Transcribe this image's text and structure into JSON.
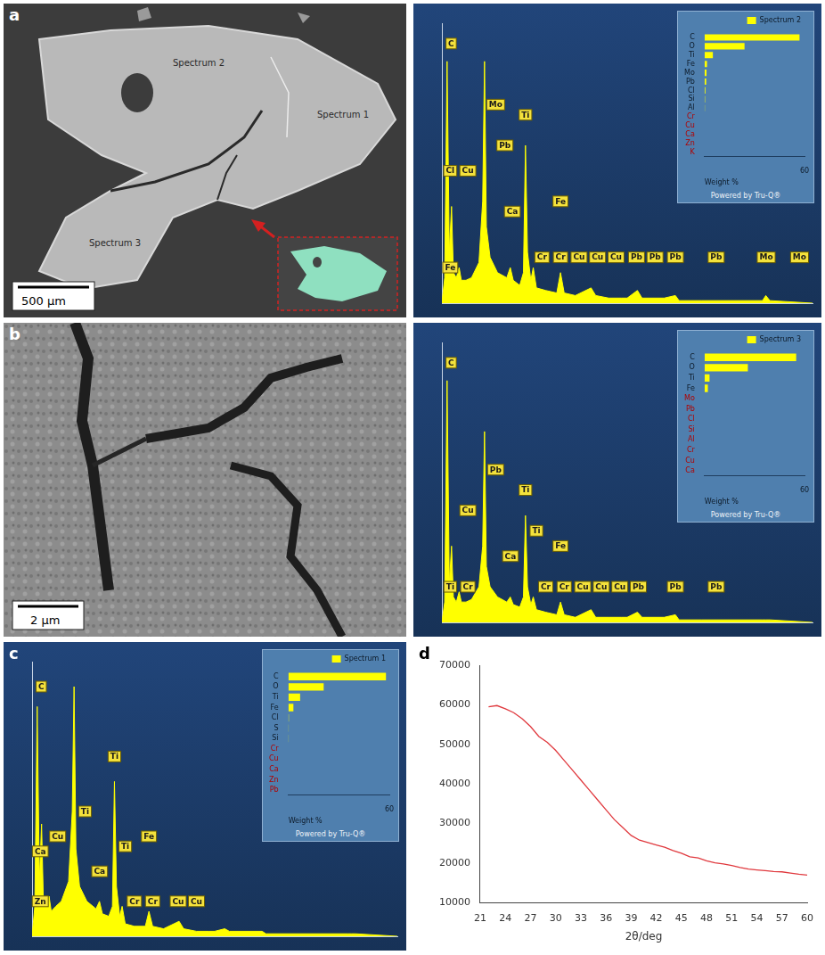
{
  "panels": [
    {
      "letter": "a",
      "labels": [
        "Spectrum 2",
        "Spectrum 1",
        "Spectrum 3"
      ],
      "scale_bar": "500 µm"
    },
    {
      "letter": "b",
      "scale_bar": "2 µm"
    },
    {
      "letter": "c"
    },
    {
      "letter": "d"
    }
  ],
  "chart_data": [
    {
      "type": "area",
      "color": "#ffff00",
      "xlim": [
        0,
        20
      ],
      "ylim": [
        0,
        110
      ],
      "grid": false,
      "tick_labels": false,
      "x": [
        0,
        0.15,
        0.28,
        0.4,
        0.52,
        0.62,
        0.78,
        0.93,
        1.05,
        1.3,
        1.6,
        2.0,
        2.2,
        2.3,
        2.4,
        2.6,
        3.0,
        3.5,
        3.69,
        3.85,
        4.2,
        4.4,
        4.51,
        4.62,
        4.8,
        4.93,
        5.1,
        5.6,
        6.2,
        6.4,
        6.6,
        7.2,
        8.05,
        8.3,
        9.0,
        9.7,
        10.0,
        10.55,
        10.8,
        12.0,
        12.6,
        12.8,
        14.0,
        17.3,
        17.48,
        17.7,
        20
      ],
      "values": [
        0,
        10,
        95,
        20,
        38,
        12,
        10,
        14,
        9,
        9,
        10,
        16,
        40,
        95,
        30,
        18,
        12,
        10,
        14,
        9,
        7,
        12,
        62,
        20,
        9,
        14,
        6,
        5,
        4,
        12,
        4,
        3,
        6,
        3,
        2,
        2,
        2,
        5,
        2,
        2,
        3,
        1,
        1,
        1,
        3,
        1,
        0
      ],
      "annotations": [
        {
          "text": "C",
          "x": 0.5,
          "y": 102
        },
        {
          "text": "Cl",
          "x": 0.45,
          "y": 52
        },
        {
          "text": "Fe",
          "x": 0.45,
          "y": 14
        },
        {
          "text": "Cu",
          "x": 1.4,
          "y": 52
        },
        {
          "text": "Mo",
          "x": 2.9,
          "y": 78
        },
        {
          "text": "Pb",
          "x": 3.4,
          "y": 62
        },
        {
          "text": "Ca",
          "x": 3.8,
          "y": 36
        },
        {
          "text": "Ti",
          "x": 4.51,
          "y": 74
        },
        {
          "text": "Fe",
          "x": 6.4,
          "y": 40
        },
        {
          "text": "Cr",
          "x": 5.4,
          "y": 18
        },
        {
          "text": "Cr",
          "x": 6.4,
          "y": 18
        },
        {
          "text": "Cu",
          "x": 7.4,
          "y": 18
        },
        {
          "text": "Cu",
          "x": 8.4,
          "y": 18
        },
        {
          "text": "Cu",
          "x": 9.4,
          "y": 18
        },
        {
          "text": "Pb",
          "x": 10.5,
          "y": 18
        },
        {
          "text": "Pb",
          "x": 11.5,
          "y": 18
        },
        {
          "text": "Pb",
          "x": 12.6,
          "y": 18
        },
        {
          "text": "Pb",
          "x": 14.8,
          "y": 18
        },
        {
          "text": "Mo",
          "x": 17.5,
          "y": 18
        },
        {
          "text": "Mo",
          "x": 19.3,
          "y": 18
        }
      ]
    },
    {
      "type": "bar",
      "orientation": "horizontal",
      "legend": "top-right",
      "grid": false,
      "categories": [
        "C",
        "O",
        "Ti",
        "Fe",
        "Mo",
        "Pb",
        "Cl",
        "Si",
        "Al",
        "Cr",
        "Cu",
        "Ca",
        "Zn",
        "K"
      ],
      "series": [
        {
          "name": "Spectrum 2",
          "color": "#ffff00",
          "values": [
            57,
            24,
            5,
            1.5,
            1.2,
            1,
            0.5,
            0.3,
            0.2,
            0,
            0,
            0,
            0,
            0
          ]
        }
      ],
      "x_label": "Weight %",
      "xlim": [
        0,
        60
      ],
      "xticks": [
        60
      ],
      "annotations": [
        {
          "text": "Powered by Tru-Q®"
        }
      ]
    },
    {
      "type": "area",
      "color": "#ffff00",
      "xlim": [
        0,
        20
      ],
      "ylim": [
        0,
        110
      ],
      "grid": false,
      "tick_labels": false,
      "x": [
        0,
        0.15,
        0.28,
        0.4,
        0.52,
        0.62,
        0.78,
        0.93,
        1.05,
        1.3,
        1.6,
        2.0,
        2.2,
        2.3,
        2.4,
        2.6,
        3.0,
        3.5,
        3.69,
        3.85,
        4.2,
        4.4,
        4.51,
        4.62,
        4.8,
        4.93,
        5.1,
        5.6,
        6.2,
        6.4,
        6.6,
        7.2,
        8.05,
        8.3,
        9.0,
        9.7,
        10.0,
        10.55,
        10.8,
        12.0,
        12.6,
        12.8,
        14.0,
        17.3,
        17.48,
        17.7,
        20
      ],
      "values": [
        0,
        8,
        95,
        15,
        30,
        10,
        8,
        12,
        8,
        8,
        9,
        14,
        30,
        75,
        22,
        14,
        10,
        8,
        10,
        7,
        6,
        10,
        42,
        14,
        7,
        10,
        5,
        4,
        3,
        8,
        3,
        2,
        5,
        2,
        2,
        2,
        2,
        4,
        2,
        2,
        3,
        1,
        1,
        1,
        1,
        1,
        0
      ],
      "annotations": [
        {
          "text": "C",
          "x": 0.5,
          "y": 102
        },
        {
          "text": "Ti",
          "x": 0.45,
          "y": 14
        },
        {
          "text": "Cr",
          "x": 1.4,
          "y": 14
        },
        {
          "text": "Cu",
          "x": 1.4,
          "y": 44
        },
        {
          "text": "Pb",
          "x": 2.9,
          "y": 60
        },
        {
          "text": "Ca",
          "x": 3.7,
          "y": 26
        },
        {
          "text": "Ti",
          "x": 4.51,
          "y": 52
        },
        {
          "text": "Ti",
          "x": 5.1,
          "y": 36
        },
        {
          "text": "Fe",
          "x": 6.4,
          "y": 30
        },
        {
          "text": "Cr",
          "x": 5.6,
          "y": 14
        },
        {
          "text": "Cr",
          "x": 6.6,
          "y": 14
        },
        {
          "text": "Cu",
          "x": 7.6,
          "y": 14
        },
        {
          "text": "Cu",
          "x": 8.6,
          "y": 14
        },
        {
          "text": "Cu",
          "x": 9.6,
          "y": 14
        },
        {
          "text": "Pb",
          "x": 10.6,
          "y": 14
        },
        {
          "text": "Pb",
          "x": 12.6,
          "y": 14
        },
        {
          "text": "Pb",
          "x": 14.8,
          "y": 14
        }
      ]
    },
    {
      "type": "bar",
      "orientation": "horizontal",
      "legend": "top-right",
      "grid": false,
      "categories": [
        "C",
        "O",
        "Ti",
        "Fe",
        "Mo",
        "Pb",
        "Cl",
        "Si",
        "Al",
        "Cr",
        "Cu",
        "Ca"
      ],
      "series": [
        {
          "name": "Spectrum 3",
          "color": "#ffff00",
          "values": [
            55,
            26,
            3,
            2,
            0,
            0,
            0,
            0,
            0,
            0,
            0,
            0
          ]
        }
      ],
      "x_label": "Weight %",
      "xlim": [
        0,
        60
      ],
      "xticks": [
        60
      ],
      "annotations": [
        {
          "text": "Powered by Tru-Q®"
        }
      ]
    },
    {
      "type": "area",
      "color": "#ffff00",
      "xlim": [
        0,
        20
      ],
      "ylim": [
        0,
        110
      ],
      "grid": false,
      "tick_labels": false,
      "x": [
        0,
        0.15,
        0.28,
        0.4,
        0.52,
        0.62,
        0.78,
        0.93,
        1.05,
        1.3,
        1.6,
        2.0,
        2.2,
        2.3,
        2.4,
        2.6,
        3.0,
        3.5,
        3.69,
        3.85,
        4.2,
        4.4,
        4.51,
        4.62,
        4.8,
        4.93,
        5.1,
        5.6,
        6.2,
        6.4,
        6.6,
        7.2,
        8.05,
        8.3,
        9.0,
        9.7,
        10.0,
        10.55,
        10.8,
        12.0,
        12.6,
        12.8,
        14.0,
        17.3,
        17.48,
        17.7,
        20
      ],
      "values": [
        0,
        12,
        92,
        22,
        45,
        14,
        12,
        16,
        10,
        12,
        14,
        22,
        50,
        100,
        35,
        20,
        14,
        11,
        14,
        9,
        8,
        12,
        62,
        20,
        8,
        12,
        5,
        4,
        4,
        10,
        4,
        3,
        6,
        3,
        2,
        2,
        2,
        3,
        2,
        2,
        2,
        1,
        1,
        1,
        1,
        1,
        0
      ],
      "annotations": [
        {
          "text": "C",
          "x": 0.5,
          "y": 100
        },
        {
          "text": "Zn",
          "x": 0.45,
          "y": 14
        },
        {
          "text": "Ca",
          "x": 0.45,
          "y": 34
        },
        {
          "text": "Cu",
          "x": 1.4,
          "y": 40
        },
        {
          "text": "Ti",
          "x": 2.9,
          "y": 50
        },
        {
          "text": "Ca",
          "x": 3.7,
          "y": 26
        },
        {
          "text": "Ti",
          "x": 4.51,
          "y": 72
        },
        {
          "text": "Ti",
          "x": 5.1,
          "y": 36
        },
        {
          "text": "Fe",
          "x": 6.4,
          "y": 40
        },
        {
          "text": "Cr",
          "x": 5.6,
          "y": 14
        },
        {
          "text": "Cr",
          "x": 6.6,
          "y": 14
        },
        {
          "text": "Cu",
          "x": 8.0,
          "y": 14
        },
        {
          "text": "Cu",
          "x": 9.0,
          "y": 14
        }
      ]
    },
    {
      "type": "bar",
      "orientation": "horizontal",
      "legend": "top-right",
      "grid": false,
      "categories": [
        "C",
        "O",
        "Ti",
        "Fe",
        "Cl",
        "S",
        "Si",
        "Cr",
        "Cu",
        "Ca",
        "Zn",
        "Pb"
      ],
      "series": [
        {
          "name": "Spectrum 1",
          "color": "#ffff00",
          "values": [
            58,
            21,
            7,
            3,
            0.3,
            0.2,
            0.2,
            0,
            0,
            0,
            0,
            0
          ]
        }
      ],
      "x_label": "Weight %",
      "xlim": [
        0,
        60
      ],
      "xticks": [
        60
      ],
      "annotations": [
        {
          "text": "Powered by Tru-Q®"
        }
      ]
    },
    {
      "type": "line",
      "color": "#e0393e",
      "grid": false,
      "x_label": "2θ/deg",
      "xlim": [
        21,
        60
      ],
      "xticks": [
        21,
        24,
        27,
        30,
        33,
        36,
        39,
        42,
        45,
        48,
        51,
        54,
        57,
        60
      ],
      "ylim": [
        10000,
        70000
      ],
      "yticks": [
        10000,
        20000,
        30000,
        40000,
        50000,
        60000,
        70000
      ],
      "x": [
        22,
        23,
        24,
        25,
        26,
        27,
        28,
        29,
        30,
        31,
        32,
        33,
        34,
        35,
        36,
        37,
        38,
        39,
        40,
        41,
        42,
        43,
        44,
        45,
        46,
        47,
        48,
        49,
        50,
        51,
        52,
        53,
        54,
        55,
        56,
        57,
        58,
        59,
        60
      ],
      "values": [
        59500,
        59800,
        59000,
        58000,
        56500,
        54500,
        52000,
        50500,
        48500,
        46000,
        43500,
        41000,
        38500,
        36000,
        33500,
        31000,
        29000,
        27000,
        25800,
        25200,
        24600,
        24000,
        23200,
        22500,
        21600,
        21300,
        20600,
        20100,
        19800,
        19400,
        18900,
        18500,
        18300,
        18100,
        17900,
        17800,
        17500,
        17200,
        17000
      ]
    }
  ]
}
